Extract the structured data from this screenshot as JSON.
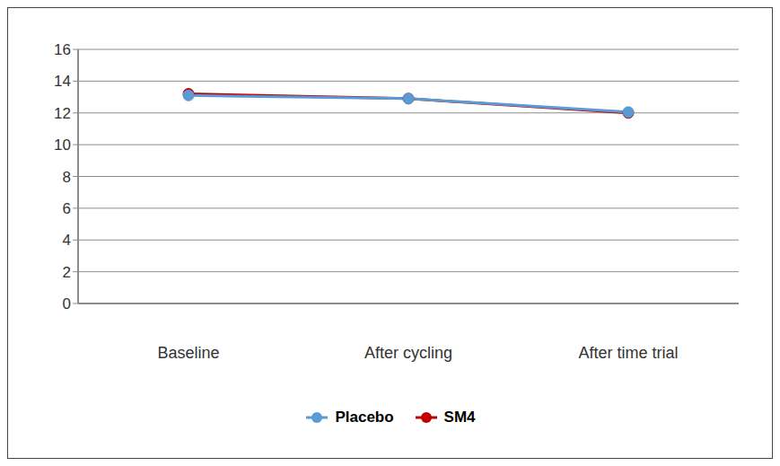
{
  "chart_data": {
    "type": "line",
    "categories": [
      "Baseline",
      "After cycling",
      "After time trial"
    ],
    "series": [
      {
        "name": "Placebo",
        "color": "#5b9bd5",
        "values": [
          13.1,
          12.9,
          12.05
        ]
      },
      {
        "name": "SM4",
        "color": "#c00000",
        "values": [
          13.2,
          12.9,
          12.0
        ]
      }
    ],
    "ylim": [
      0,
      16
    ],
    "yticks": [
      0,
      2,
      4,
      6,
      8,
      10,
      12,
      14,
      16
    ],
    "grid": true,
    "legend": "bottom",
    "marker": "circle"
  }
}
